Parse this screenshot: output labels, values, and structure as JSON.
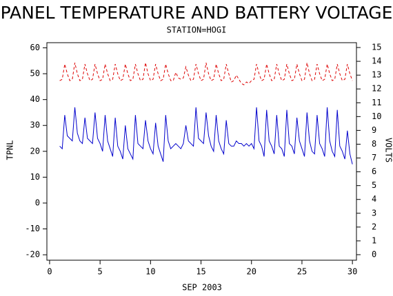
{
  "chart_data": {
    "type": "line",
    "title": "PANEL TEMPERATURE AND BATTERY VOLTAGE",
    "subtitle": "STATION=HOGI",
    "x_label": "SEP 2003",
    "y_label": "TPNL",
    "y2_label": "VOLTS",
    "xlim": [
      -0.27,
      30.4
    ],
    "xticks": [
      0,
      5,
      10,
      15,
      20,
      25,
      30
    ],
    "ylim": [
      -22.1,
      62
    ],
    "yticks": [
      -20,
      -10,
      0,
      10,
      20,
      30,
      40,
      50,
      60
    ],
    "y2lim": [
      -0.4,
      15.35
    ],
    "y2ticks": [
      0,
      1,
      2,
      3,
      4,
      5,
      6,
      7,
      8,
      9,
      10,
      11,
      12,
      13,
      14,
      15
    ],
    "grid": false,
    "x": [
      1,
      1.25,
      1.5,
      1.75,
      2,
      2.25,
      2.5,
      2.75,
      3,
      3.25,
      3.5,
      3.75,
      4,
      4.25,
      4.5,
      4.75,
      5,
      5.25,
      5.5,
      5.75,
      6,
      6.25,
      6.5,
      6.75,
      7,
      7.25,
      7.5,
      7.75,
      8,
      8.25,
      8.5,
      8.75,
      9,
      9.25,
      9.5,
      9.75,
      10,
      10.25,
      10.5,
      10.75,
      11,
      11.25,
      11.5,
      11.75,
      12,
      12.25,
      12.5,
      12.75,
      13,
      13.25,
      13.5,
      13.75,
      14,
      14.25,
      14.5,
      14.75,
      15,
      15.25,
      15.5,
      15.75,
      16,
      16.25,
      16.5,
      16.75,
      17,
      17.25,
      17.5,
      17.75,
      18,
      18.25,
      18.5,
      18.75,
      19,
      19.25,
      19.5,
      19.75,
      20,
      20.25,
      20.5,
      20.75,
      21,
      21.25,
      21.5,
      21.75,
      22,
      22.25,
      22.5,
      22.75,
      23,
      23.25,
      23.5,
      23.75,
      24,
      24.25,
      24.5,
      24.75,
      25,
      25.25,
      25.5,
      25.75,
      26,
      26.25,
      26.5,
      26.75,
      27,
      27.25,
      27.5,
      27.75,
      28,
      28.25,
      28.5,
      28.75,
      29,
      29.25,
      29.5,
      29.75,
      30
    ],
    "series": [
      {
        "name": "TPNL",
        "color": "#0000cc",
        "dash": false,
        "values": [
          22,
          21,
          34,
          26,
          25,
          24,
          37,
          27,
          24,
          23,
          33,
          25,
          24,
          23,
          35,
          25,
          23,
          20,
          34,
          24,
          21,
          18,
          33,
          22,
          20,
          17,
          30,
          21,
          19,
          17,
          34,
          23,
          22,
          21,
          32,
          24,
          21,
          19,
          31,
          22,
          19,
          16,
          34,
          24,
          21,
          22,
          23,
          22,
          21,
          23,
          30,
          24,
          23,
          22,
          37,
          25,
          24,
          23,
          35,
          26,
          22,
          20,
          34,
          24,
          21,
          19,
          32,
          23,
          22,
          22,
          24,
          23,
          23,
          22,
          23,
          22,
          23,
          21,
          37,
          24,
          22,
          18,
          36,
          24,
          22,
          19,
          34,
          22,
          21,
          18,
          36,
          23,
          22,
          19,
          33,
          24,
          21,
          18,
          35,
          24,
          20,
          19,
          34,
          23,
          21,
          18,
          37,
          24,
          20,
          18,
          36,
          22,
          20,
          17,
          28,
          19,
          15
        ]
      },
      {
        "name": "VOLTS",
        "color": "#dd0000",
        "dash": true,
        "axis": "y2",
        "values": [
          12.6,
          12.7,
          13.8,
          13.1,
          12.6,
          12.7,
          13.9,
          13.1,
          12.6,
          12.7,
          13.8,
          13.1,
          12.6,
          12.7,
          13.8,
          13.1,
          12.6,
          12.7,
          13.8,
          13.1,
          12.6,
          12.7,
          13.8,
          13.1,
          12.6,
          12.7,
          13.8,
          13.1,
          12.6,
          12.7,
          13.8,
          13.1,
          12.6,
          12.7,
          13.9,
          13.1,
          12.6,
          12.7,
          13.8,
          13.1,
          12.6,
          12.7,
          13.8,
          13.1,
          12.6,
          12.6,
          13.2,
          12.8,
          12.7,
          12.8,
          13.6,
          13.0,
          12.6,
          12.7,
          13.8,
          13.1,
          12.6,
          12.7,
          13.9,
          13.1,
          12.6,
          12.7,
          13.8,
          13.1,
          12.6,
          12.7,
          13.8,
          13.1,
          12.5,
          12.6,
          13.0,
          12.7,
          12.4,
          12.3,
          12.5,
          12.4,
          12.6,
          12.7,
          13.8,
          13.1,
          12.6,
          12.7,
          13.8,
          13.1,
          12.6,
          12.7,
          13.8,
          13.1,
          12.6,
          12.7,
          13.8,
          13.1,
          12.6,
          12.7,
          13.8,
          13.1,
          12.6,
          12.7,
          13.9,
          13.1,
          12.6,
          12.7,
          13.8,
          13.1,
          12.6,
          12.7,
          13.8,
          13.1,
          12.6,
          12.7,
          13.8,
          13.1,
          12.6,
          12.7,
          13.8,
          13.1,
          12.6
        ]
      }
    ]
  }
}
